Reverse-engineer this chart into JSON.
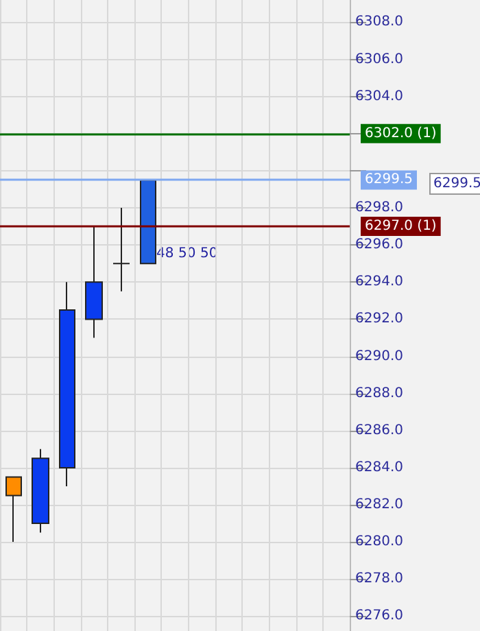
{
  "chart_data": {
    "type": "candlestick",
    "categories": [
      null,
      null,
      null,
      null,
      null,
      null,
      null,
      null,
      null,
      null,
      null,
      null,
      null
    ],
    "ohlc": [
      [
        6283.5,
        6283.5,
        6280.0,
        6282.5
      ],
      [
        6281.0,
        6285.0,
        6280.5,
        6284.5
      ],
      [
        6284.0,
        6294.0,
        6283.0,
        6292.5
      ],
      [
        6292.0,
        6297.0,
        6291.0,
        6294.0
      ],
      [
        6295.0,
        6298.0,
        6293.5,
        6295.0
      ],
      [
        6295.0,
        6299.5,
        6295.0,
        6299.5
      ],
      null,
      null,
      null,
      null,
      null,
      null,
      null
    ],
    "colors": [
      "#ff8c00",
      "#0a3cf0",
      "#0a3cf0",
      "#0a3cf0",
      "#222222",
      "#2060e0",
      null,
      null,
      null,
      null,
      null,
      null,
      null
    ],
    "ylim": [
      6275.2,
      6309.2
    ],
    "yticks": [
      {
        "value": 6276,
        "label": "6276.0"
      },
      {
        "value": 6278,
        "label": "6278.0"
      },
      {
        "value": 6280,
        "label": "6280.0"
      },
      {
        "value": 6282,
        "label": "6282.0"
      },
      {
        "value": 6284,
        "label": "6284.0"
      },
      {
        "value": 6286,
        "label": "6286.0"
      },
      {
        "value": 6288,
        "label": "6288.0"
      },
      {
        "value": 6290,
        "label": "6290.0"
      },
      {
        "value": 6292,
        "label": "6292.0"
      },
      {
        "value": 6294,
        "label": "6294.0"
      },
      {
        "value": 6296,
        "label": "6296.0"
      },
      {
        "value": 6298,
        "label": "6298.0"
      },
      {
        "value": 6300,
        "label": null
      },
      {
        "value": 6302,
        "label": null
      },
      {
        "value": 6304,
        "label": "6304.0"
      },
      {
        "value": 6306,
        "label": "6306.0"
      },
      {
        "value": 6308,
        "label": "6308.0"
      }
    ],
    "grid": true,
    "ref_lines": [
      {
        "axis": "y",
        "value": 6302.0,
        "label": "6302.0 (1)",
        "color": "#007000"
      },
      {
        "axis": "y",
        "value": 6297.0,
        "label": "6297.0 (1)",
        "color": "#800000"
      },
      {
        "axis": "y",
        "value": 6299.5,
        "label": "6299.5",
        "color": "#7fa8f0"
      }
    ],
    "annotations": [
      "48",
      "50",
      "50",
      "6299.5"
    ]
  }
}
